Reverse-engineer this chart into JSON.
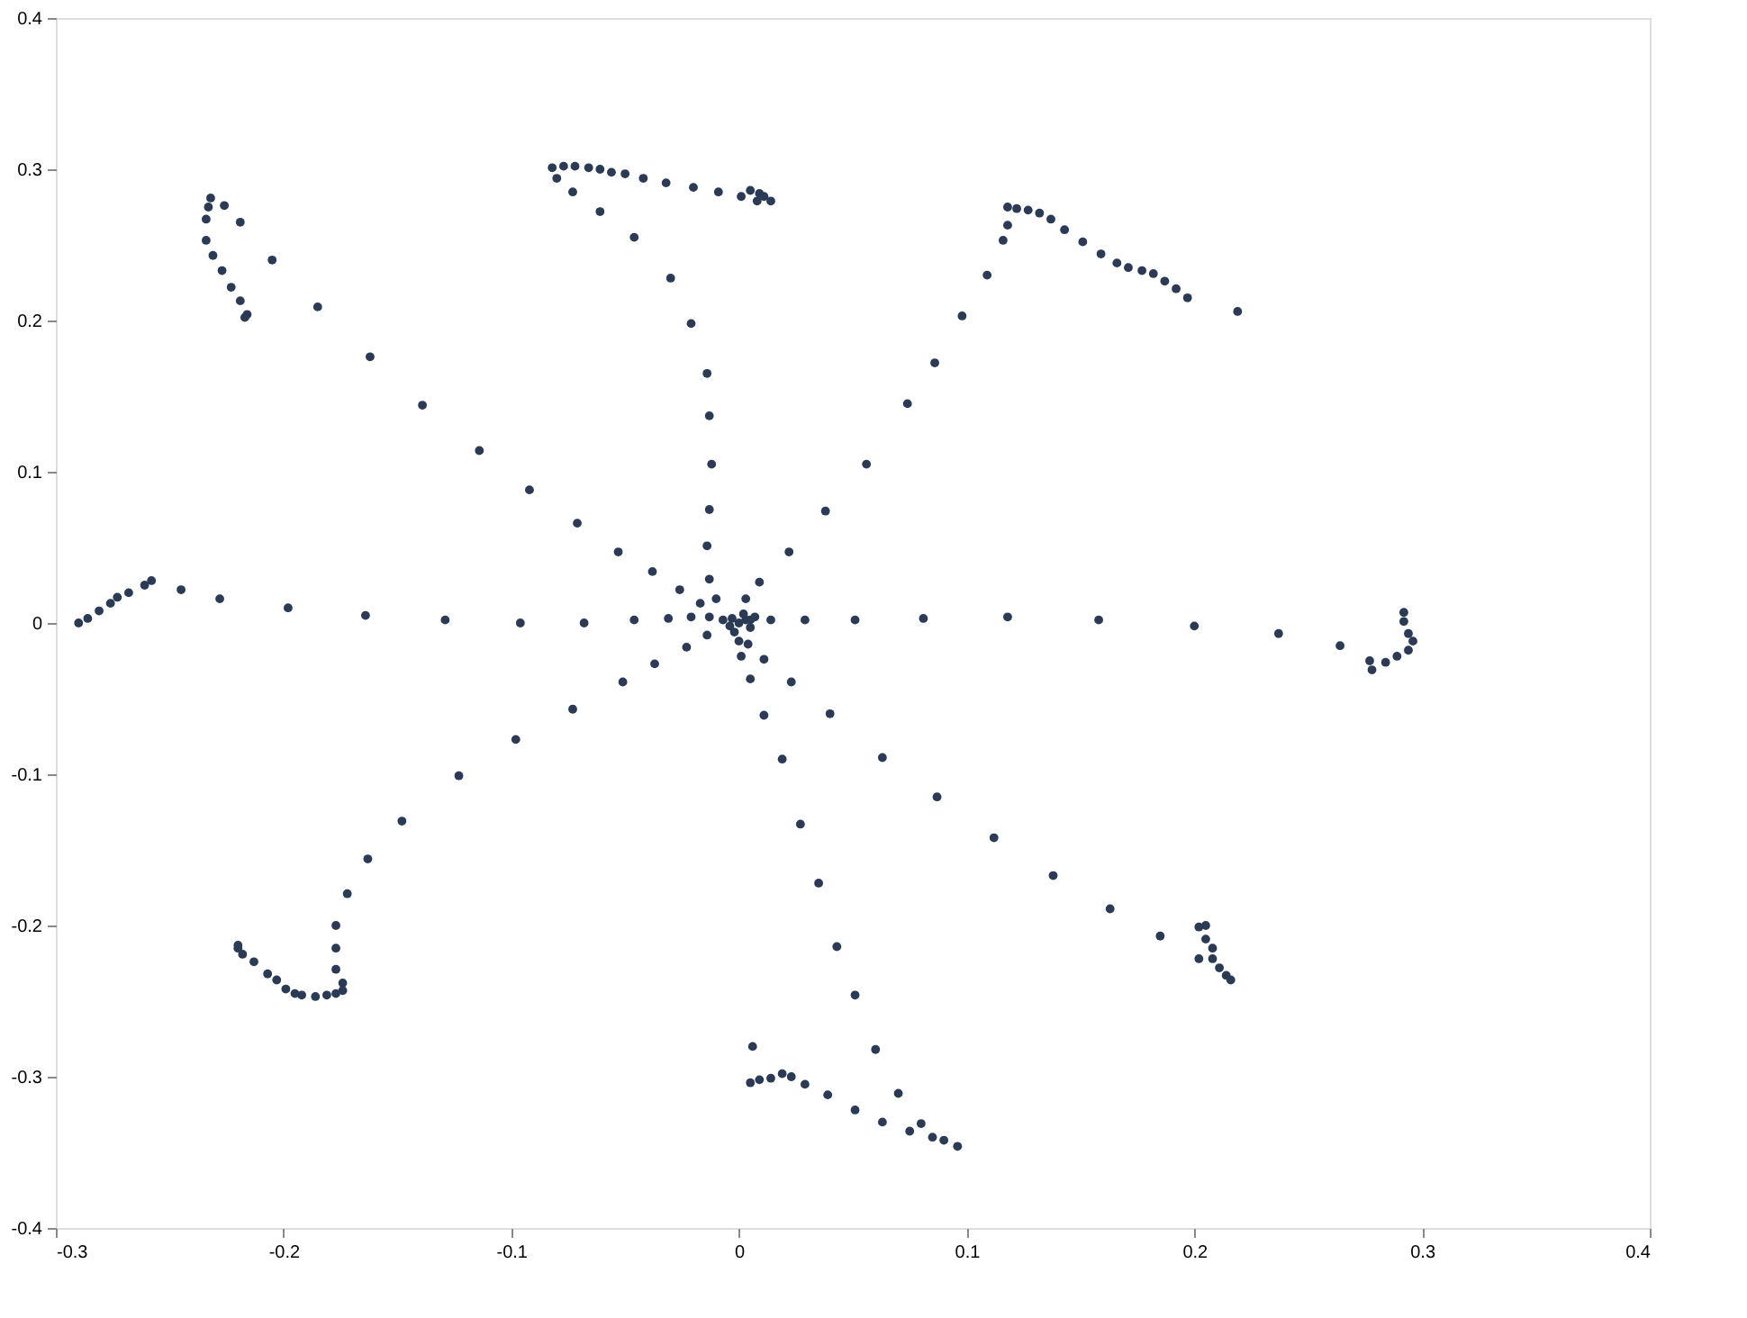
{
  "chart_data": {
    "type": "scatter",
    "xlim": [
      -0.3,
      0.4
    ],
    "ylim": [
      -0.4,
      0.4
    ],
    "xticks": [
      -0.3,
      -0.2,
      -0.1,
      0,
      0.1,
      0.2,
      0.3,
      0.4
    ],
    "yticks": [
      -0.4,
      -0.3,
      -0.2,
      -0.1,
      0,
      0.1,
      0.2,
      0.3,
      0.4
    ],
    "grid": false,
    "marker": "circle",
    "series": [
      {
        "color": "#2b3a55",
        "x": [
          0,
          0.003,
          -0.003,
          0.005,
          -0.004,
          0.002,
          -0.002,
          0.007,
          -0.007,
          -0.013,
          -0.021,
          -0.031,
          -0.046,
          -0.068,
          -0.096,
          -0.129,
          -0.164,
          -0.198,
          -0.228,
          -0.245,
          -0.258,
          -0.261,
          -0.268,
          -0.273,
          -0.276,
          -0.281,
          -0.286,
          -0.29,
          -0.017,
          -0.026,
          -0.038,
          -0.053,
          -0.071,
          -0.092,
          -0.114,
          -0.139,
          -0.162,
          -0.185,
          -0.205,
          -0.219,
          -0.226,
          -0.232,
          -0.233,
          -0.234,
          -0.234,
          -0.231,
          -0.227,
          -0.223,
          -0.219,
          -0.216,
          -0.217,
          -0.01,
          -0.013,
          -0.014,
          -0.013,
          -0.012,
          -0.013,
          -0.014,
          -0.021,
          -0.03,
          -0.046,
          -0.061,
          -0.073,
          -0.08,
          -0.082,
          -0.077,
          -0.072,
          -0.066,
          -0.061,
          -0.056,
          -0.05,
          -0.042,
          -0.032,
          -0.02,
          -0.009,
          0.001,
          0.005,
          0.009,
          0.011,
          0.014,
          0.008,
          0.003,
          0.009,
          0.022,
          0.038,
          0.056,
          0.074,
          0.086,
          0.098,
          0.109,
          0.116,
          0.118,
          0.118,
          0.122,
          0.127,
          0.132,
          0.137,
          0.143,
          0.151,
          0.159,
          0.166,
          0.171,
          0.177,
          0.182,
          0.187,
          0.192,
          0.197,
          0.219,
          0.005,
          0.014,
          0.029,
          0.051,
          0.081,
          0.118,
          0.158,
          0.2,
          0.237,
          0.264,
          0.277,
          0.278,
          0.284,
          0.289,
          0.294,
          0.296,
          0.294,
          0.292,
          0.292,
          0.004,
          0.011,
          0.023,
          0.04,
          0.063,
          0.087,
          0.112,
          0.138,
          0.163,
          0.185,
          0.202,
          0.202,
          0.205,
          0.205,
          0.208,
          0.208,
          0.211,
          0.214,
          0.216,
          0.0,
          0.001,
          0.005,
          0.011,
          0.019,
          0.027,
          0.035,
          0.043,
          0.051,
          0.06,
          0.07,
          0.08,
          0.085,
          0.09,
          0.096,
          0.006,
          0.005,
          0.009,
          0.014,
          0.019,
          0.023,
          0.029,
          0.039,
          0.051,
          0.063,
          0.075,
          -0.014,
          -0.023,
          -0.037,
          -0.051,
          -0.073,
          -0.098,
          -0.123,
          -0.148,
          -0.163,
          -0.172,
          -0.177,
          -0.177,
          -0.177,
          -0.174,
          -0.174,
          -0.177,
          -0.181,
          -0.186,
          -0.192,
          -0.195,
          -0.199,
          -0.203,
          -0.207,
          -0.213,
          -0.218,
          -0.22,
          -0.22
        ],
        "values": [
          0,
          0.002,
          0.003,
          -0.003,
          -0.002,
          0.006,
          -0.006,
          0.004,
          0.002,
          0.004,
          0.004,
          0.003,
          0.002,
          0,
          0,
          0.002,
          0.005,
          0.01,
          0.016,
          0.022,
          0.028,
          0.025,
          0.02,
          0.017,
          0.013,
          0.008,
          0.003,
          0,
          0.013,
          0.022,
          0.034,
          0.047,
          0.066,
          0.088,
          0.114,
          0.144,
          0.176,
          0.209,
          0.24,
          0.265,
          0.276,
          0.281,
          0.275,
          0.267,
          0.253,
          0.243,
          0.233,
          0.222,
          0.213,
          0.204,
          0.202,
          0.016,
          0.029,
          0.051,
          0.075,
          0.105,
          0.137,
          0.165,
          0.198,
          0.228,
          0.255,
          0.272,
          0.285,
          0.294,
          0.301,
          0.302,
          0.302,
          0.301,
          0.3,
          0.298,
          0.297,
          0.294,
          0.291,
          0.288,
          0.285,
          0.282,
          0.286,
          0.284,
          0.282,
          0.279,
          0.279,
          0.016,
          0.027,
          0.047,
          0.074,
          0.105,
          0.145,
          0.172,
          0.203,
          0.23,
          0.253,
          0.263,
          0.275,
          0.274,
          0.273,
          0.271,
          0.267,
          0.26,
          0.252,
          0.244,
          0.238,
          0.235,
          0.233,
          0.231,
          0.226,
          0.221,
          0.215,
          0.206,
          0.002,
          0.002,
          0.002,
          0.002,
          0.003,
          0.004,
          0.002,
          -0.002,
          -0.007,
          -0.015,
          -0.025,
          -0.031,
          -0.026,
          -0.022,
          -0.018,
          -0.012,
          -0.007,
          0.001,
          0.007,
          -0.014,
          -0.024,
          -0.039,
          -0.06,
          -0.089,
          -0.115,
          -0.142,
          -0.167,
          -0.189,
          -0.207,
          -0.222,
          -0.201,
          -0.2,
          -0.209,
          -0.215,
          -0.222,
          -0.228,
          -0.233,
          -0.236,
          -0.012,
          -0.022,
          -0.037,
          -0.061,
          -0.09,
          -0.133,
          -0.172,
          -0.214,
          -0.246,
          -0.282,
          -0.311,
          -0.331,
          -0.34,
          -0.342,
          -0.346,
          -0.28,
          -0.304,
          -0.302,
          -0.301,
          -0.298,
          -0.3,
          -0.305,
          -0.312,
          -0.322,
          -0.33,
          -0.336,
          -0.008,
          -0.016,
          -0.027,
          -0.039,
          -0.057,
          -0.077,
          -0.101,
          -0.131,
          -0.156,
          -0.179,
          -0.2,
          -0.215,
          -0.229,
          -0.238,
          -0.243,
          -0.245,
          -0.246,
          -0.247,
          -0.246,
          -0.245,
          -0.242,
          -0.236,
          -0.232,
          -0.224,
          -0.219,
          -0.215,
          -0.213
        ]
      }
    ]
  }
}
